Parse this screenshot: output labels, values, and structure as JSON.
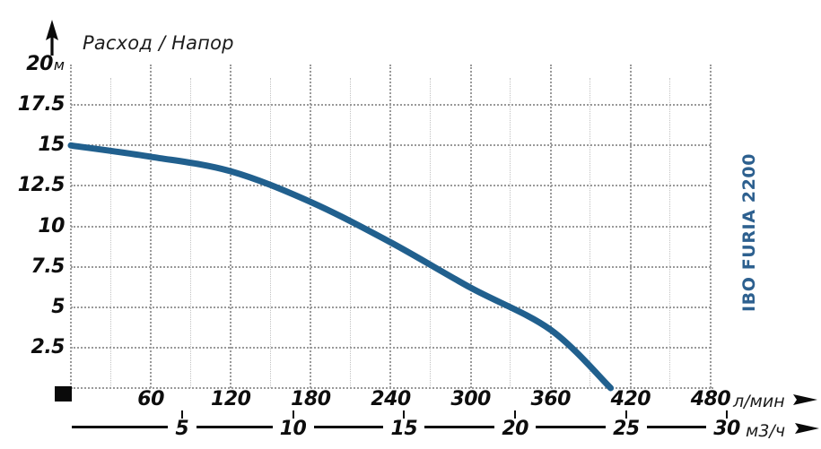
{
  "title": "Расход / Напор",
  "side_label": "IBO FURIA 2200",
  "colors": {
    "curve": "#21608e",
    "brand": "#2d608f",
    "grid_major": "#9a9a9a",
    "grid_minor": "#c2c2c2",
    "axis_text": "#0d0d0d"
  },
  "icons": {
    "y_axis_arrow": "arrow-up-icon",
    "x_axis_arrows": "arrow-right-icon",
    "origin_marker": "black-square"
  },
  "chart_data": {
    "type": "line",
    "title": "Расход / Напор",
    "grid": "dotted; vertical major every 60 л/мин, minor every 30 л/мин; horizontal every 2.5 м",
    "series": [
      {
        "name": "IBO FURIA 2200",
        "points": [
          [
            0,
            15
          ],
          [
            60,
            14.3
          ],
          [
            120,
            13.4
          ],
          [
            180,
            11.5
          ],
          [
            240,
            9.0
          ],
          [
            300,
            6.2
          ],
          [
            360,
            3.6
          ],
          [
            405,
            0
          ]
        ]
      }
    ],
    "x_axis_primary": {
      "label": "л/мин",
      "ticks": [
        "60",
        "120",
        "180",
        "240",
        "300",
        "360",
        "420",
        "480"
      ],
      "range": [
        0,
        480
      ]
    },
    "x_axis_secondary": {
      "label": "м3/ч",
      "ticks": [
        "5",
        "10",
        "15",
        "20",
        "25",
        "30"
      ],
      "range": [
        0,
        30
      ]
    },
    "y_axis": {
      "label": "м",
      "ticks": [
        "20",
        "17.5",
        "15",
        "12.5",
        "10",
        "7.5",
        "5",
        "2.5"
      ],
      "range": [
        0,
        20
      ]
    }
  }
}
